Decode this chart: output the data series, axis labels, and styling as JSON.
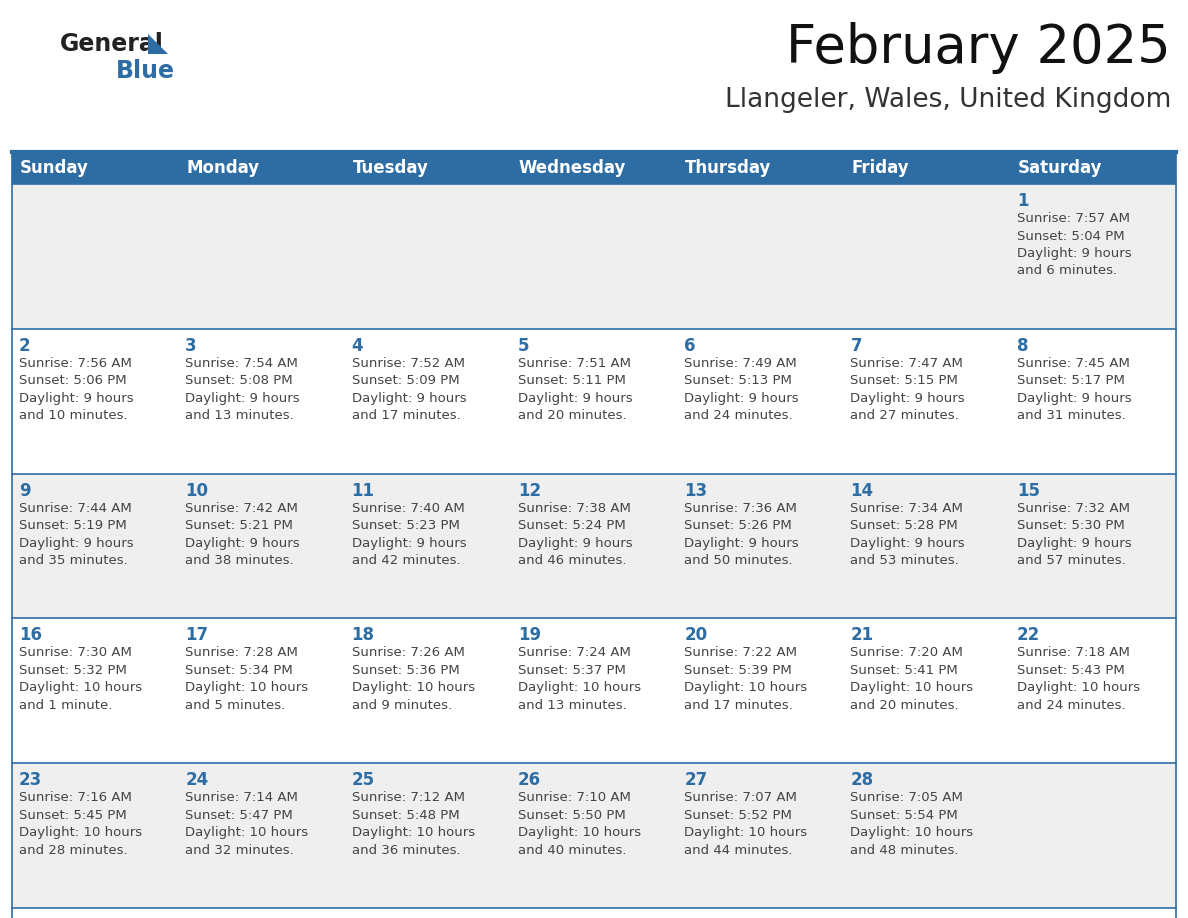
{
  "title": "February 2025",
  "subtitle": "Llangeler, Wales, United Kingdom",
  "header_bg": "#2E6DA4",
  "header_text_color": "#FFFFFF",
  "cell_bg_odd": "#EFEFEF",
  "cell_bg_even": "#FFFFFF",
  "day_number_color": "#2E6DA4",
  "info_text_color": "#444444",
  "border_color": "#2E6DA4",
  "days_of_week": [
    "Sunday",
    "Monday",
    "Tuesday",
    "Wednesday",
    "Thursday",
    "Friday",
    "Saturday"
  ],
  "weeks": [
    [
      {
        "day": null,
        "info": null
      },
      {
        "day": null,
        "info": null
      },
      {
        "day": null,
        "info": null
      },
      {
        "day": null,
        "info": null
      },
      {
        "day": null,
        "info": null
      },
      {
        "day": null,
        "info": null
      },
      {
        "day": 1,
        "info": "Sunrise: 7:57 AM\nSunset: 5:04 PM\nDaylight: 9 hours\nand 6 minutes."
      }
    ],
    [
      {
        "day": 2,
        "info": "Sunrise: 7:56 AM\nSunset: 5:06 PM\nDaylight: 9 hours\nand 10 minutes."
      },
      {
        "day": 3,
        "info": "Sunrise: 7:54 AM\nSunset: 5:08 PM\nDaylight: 9 hours\nand 13 minutes."
      },
      {
        "day": 4,
        "info": "Sunrise: 7:52 AM\nSunset: 5:09 PM\nDaylight: 9 hours\nand 17 minutes."
      },
      {
        "day": 5,
        "info": "Sunrise: 7:51 AM\nSunset: 5:11 PM\nDaylight: 9 hours\nand 20 minutes."
      },
      {
        "day": 6,
        "info": "Sunrise: 7:49 AM\nSunset: 5:13 PM\nDaylight: 9 hours\nand 24 minutes."
      },
      {
        "day": 7,
        "info": "Sunrise: 7:47 AM\nSunset: 5:15 PM\nDaylight: 9 hours\nand 27 minutes."
      },
      {
        "day": 8,
        "info": "Sunrise: 7:45 AM\nSunset: 5:17 PM\nDaylight: 9 hours\nand 31 minutes."
      }
    ],
    [
      {
        "day": 9,
        "info": "Sunrise: 7:44 AM\nSunset: 5:19 PM\nDaylight: 9 hours\nand 35 minutes."
      },
      {
        "day": 10,
        "info": "Sunrise: 7:42 AM\nSunset: 5:21 PM\nDaylight: 9 hours\nand 38 minutes."
      },
      {
        "day": 11,
        "info": "Sunrise: 7:40 AM\nSunset: 5:23 PM\nDaylight: 9 hours\nand 42 minutes."
      },
      {
        "day": 12,
        "info": "Sunrise: 7:38 AM\nSunset: 5:24 PM\nDaylight: 9 hours\nand 46 minutes."
      },
      {
        "day": 13,
        "info": "Sunrise: 7:36 AM\nSunset: 5:26 PM\nDaylight: 9 hours\nand 50 minutes."
      },
      {
        "day": 14,
        "info": "Sunrise: 7:34 AM\nSunset: 5:28 PM\nDaylight: 9 hours\nand 53 minutes."
      },
      {
        "day": 15,
        "info": "Sunrise: 7:32 AM\nSunset: 5:30 PM\nDaylight: 9 hours\nand 57 minutes."
      }
    ],
    [
      {
        "day": 16,
        "info": "Sunrise: 7:30 AM\nSunset: 5:32 PM\nDaylight: 10 hours\nand 1 minute."
      },
      {
        "day": 17,
        "info": "Sunrise: 7:28 AM\nSunset: 5:34 PM\nDaylight: 10 hours\nand 5 minutes."
      },
      {
        "day": 18,
        "info": "Sunrise: 7:26 AM\nSunset: 5:36 PM\nDaylight: 10 hours\nand 9 minutes."
      },
      {
        "day": 19,
        "info": "Sunrise: 7:24 AM\nSunset: 5:37 PM\nDaylight: 10 hours\nand 13 minutes."
      },
      {
        "day": 20,
        "info": "Sunrise: 7:22 AM\nSunset: 5:39 PM\nDaylight: 10 hours\nand 17 minutes."
      },
      {
        "day": 21,
        "info": "Sunrise: 7:20 AM\nSunset: 5:41 PM\nDaylight: 10 hours\nand 20 minutes."
      },
      {
        "day": 22,
        "info": "Sunrise: 7:18 AM\nSunset: 5:43 PM\nDaylight: 10 hours\nand 24 minutes."
      }
    ],
    [
      {
        "day": 23,
        "info": "Sunrise: 7:16 AM\nSunset: 5:45 PM\nDaylight: 10 hours\nand 28 minutes."
      },
      {
        "day": 24,
        "info": "Sunrise: 7:14 AM\nSunset: 5:47 PM\nDaylight: 10 hours\nand 32 minutes."
      },
      {
        "day": 25,
        "info": "Sunrise: 7:12 AM\nSunset: 5:48 PM\nDaylight: 10 hours\nand 36 minutes."
      },
      {
        "day": 26,
        "info": "Sunrise: 7:10 AM\nSunset: 5:50 PM\nDaylight: 10 hours\nand 40 minutes."
      },
      {
        "day": 27,
        "info": "Sunrise: 7:07 AM\nSunset: 5:52 PM\nDaylight: 10 hours\nand 44 minutes."
      },
      {
        "day": 28,
        "info": "Sunrise: 7:05 AM\nSunset: 5:54 PM\nDaylight: 10 hours\nand 48 minutes."
      },
      {
        "day": null,
        "info": null
      }
    ]
  ],
  "logo_general_color": "#222222",
  "logo_blue_color": "#2E6DA4",
  "title_fontsize": 38,
  "subtitle_fontsize": 19,
  "header_fontsize": 12,
  "day_number_fontsize": 12,
  "info_fontsize": 9.5
}
